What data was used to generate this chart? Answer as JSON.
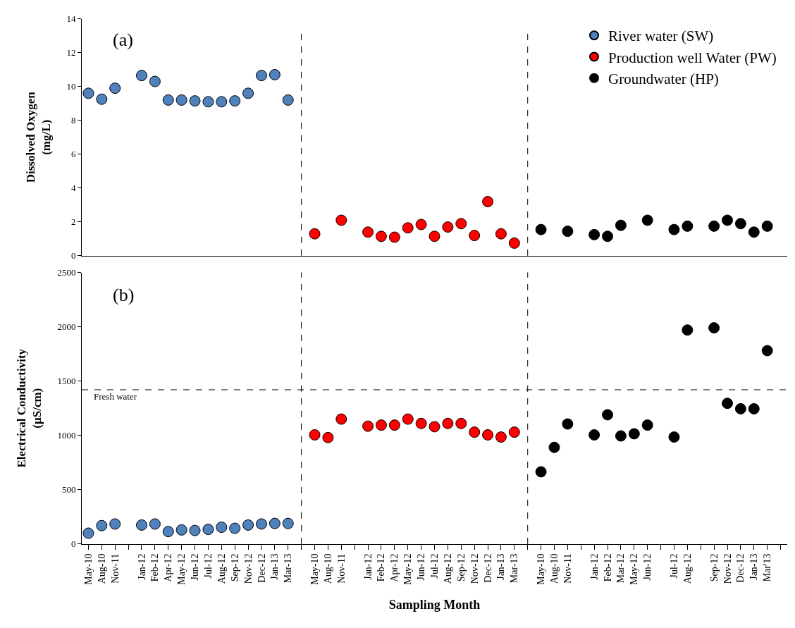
{
  "chart_data": [
    {
      "type": "scatter",
      "ylabel": "Dissolved Oxygen\n(mg/L)",
      "ylim": [
        0,
        14
      ],
      "yticks": [
        0,
        2,
        4,
        6,
        8,
        10,
        12,
        14
      ],
      "tick_labels": "y",
      "legend": "top right",
      "marker": "circle",
      "categories": [
        "May-10",
        "Aug-10",
        "Nov-11",
        null,
        "Jan-12",
        "Feb-12",
        "Apr-12",
        "May-12",
        "Jun-12",
        "Jul-12",
        "Aug-12",
        "Sep-12",
        "Nov-12",
        "Dec-12",
        "Jan-13",
        "Mar-13",
        null,
        "May-10",
        "Aug-10",
        "Nov-11",
        null,
        "Jan-12",
        "Feb-12",
        "Apr-12",
        "May-12",
        "Jun-12",
        "Jul-12",
        "Aug-12",
        "Sep-12",
        "Nov-12",
        "Dec-12",
        "Jan-13",
        "Mar-13",
        null,
        "May-10",
        "Aug-10",
        "Nov-11",
        null,
        "Jan-12",
        "Feb-12",
        "Mar-12",
        "May-12",
        "Jun-12",
        null,
        "Jul-12",
        "Aug-12",
        null,
        "Sep-12",
        "Nov-12",
        "Dec-12",
        "Jan-13",
        "Mar'13",
        null
      ],
      "annotations": [
        "(a)"
      ],
      "series": [
        {
          "name": "River water (SW)",
          "color": "#4f81bd",
          "values": [
            9.6,
            9.25,
            9.9,
            null,
            10.65,
            10.3,
            9.2,
            9.2,
            9.15,
            9.1,
            9.1,
            9.15,
            9.6,
            10.65,
            10.7,
            9.2,
            null,
            null,
            null,
            null,
            null,
            null,
            null,
            null,
            null,
            null,
            null,
            null,
            null,
            null,
            null,
            null,
            null,
            null,
            null,
            null,
            null,
            null,
            null,
            null,
            null,
            null,
            null,
            null,
            null,
            null,
            null,
            null,
            null,
            null,
            null,
            null,
            null
          ]
        },
        {
          "name": "Production well Water (PW)",
          "color": "#ff0000",
          "values": [
            null,
            null,
            null,
            null,
            null,
            null,
            null,
            null,
            null,
            null,
            null,
            null,
            null,
            null,
            null,
            null,
            null,
            1.3,
            null,
            2.1,
            null,
            1.4,
            1.15,
            1.1,
            1.65,
            1.85,
            1.15,
            1.7,
            1.9,
            1.2,
            3.2,
            1.3,
            0.75,
            null,
            null,
            null,
            null,
            null,
            null,
            null,
            null,
            null,
            null,
            null,
            null,
            null,
            null,
            null,
            null,
            null,
            null,
            null,
            null
          ]
        },
        {
          "name": "Groundwater (HP)",
          "color": "#000000",
          "values": [
            null,
            null,
            null,
            null,
            null,
            null,
            null,
            null,
            null,
            null,
            null,
            null,
            null,
            null,
            null,
            null,
            null,
            null,
            null,
            null,
            null,
            null,
            null,
            null,
            null,
            null,
            null,
            null,
            null,
            null,
            null,
            null,
            null,
            null,
            1.55,
            null,
            1.45,
            null,
            1.25,
            1.15,
            1.8,
            null,
            2.1,
            null,
            1.55,
            1.75,
            null,
            1.75,
            2.1,
            1.9,
            1.4,
            1.75,
            null
          ]
        }
      ]
    },
    {
      "type": "scatter",
      "xlabel": "Sampling Month",
      "ylabel": "Electrical Conductivity\n(µS/cm)",
      "ylim": [
        0,
        2500
      ],
      "yticks": [
        0,
        500,
        1000,
        1500,
        2000,
        2500
      ],
      "marker": "circle",
      "categories": [
        "May-10",
        "Aug-10",
        "Nov-11",
        null,
        "Jan-12",
        "Feb-12",
        "Apr-12",
        "May-12",
        "Jun-12",
        "Jul-12",
        "Aug-12",
        "Sep-12",
        "Nov-12",
        "Dec-12",
        "Jan-13",
        "Mar-13",
        null,
        "May-10",
        "Aug-10",
        "Nov-11",
        null,
        "Jan-12",
        "Feb-12",
        "Apr-12",
        "May-12",
        "Jun-12",
        "Jul-12",
        "Aug-12",
        "Sep-12",
        "Nov-12",
        "Dec-12",
        "Jan-13",
        "Mar-13",
        null,
        "May-10",
        "Aug-10",
        "Nov-11",
        null,
        "Jan-12",
        "Feb-12",
        "Mar-12",
        "May-12",
        "Jun-12",
        null,
        "Jul-12",
        "Aug-12",
        null,
        "Sep-12",
        "Nov-12",
        "Dec-12",
        "Jan-13",
        "Mar'13",
        null
      ],
      "annotations": [
        "(b)"
      ],
      "ref_lines": [
        {
          "axis": "y",
          "value": 1420,
          "label": "Fresh water",
          "line_style": "dashed"
        }
      ],
      "series": [
        {
          "color": "#4f81bd",
          "values": [
            100,
            170,
            185,
            null,
            175,
            185,
            115,
            130,
            125,
            135,
            155,
            145,
            175,
            185,
            190,
            190,
            null,
            null,
            null,
            null,
            null,
            null,
            null,
            null,
            null,
            null,
            null,
            null,
            null,
            null,
            null,
            null,
            null,
            null,
            null,
            null,
            null,
            null,
            null,
            null,
            null,
            null,
            null,
            null,
            null,
            null,
            null,
            null,
            null,
            null,
            null,
            null,
            null
          ]
        },
        {
          "color": "#ff0000",
          "values": [
            null,
            null,
            null,
            null,
            null,
            null,
            null,
            null,
            null,
            null,
            null,
            null,
            null,
            null,
            null,
            null,
            null,
            1005,
            980,
            1150,
            null,
            1085,
            1095,
            1095,
            1150,
            1110,
            1080,
            1110,
            1110,
            1030,
            1005,
            985,
            1030,
            null,
            null,
            null,
            null,
            null,
            null,
            null,
            null,
            null,
            null,
            null,
            null,
            null,
            null,
            null,
            null,
            null,
            null,
            null,
            null
          ]
        },
        {
          "color": "#000000",
          "values": [
            null,
            null,
            null,
            null,
            null,
            null,
            null,
            null,
            null,
            null,
            null,
            null,
            null,
            null,
            null,
            null,
            null,
            null,
            null,
            null,
            null,
            null,
            null,
            null,
            null,
            null,
            null,
            null,
            null,
            null,
            null,
            null,
            null,
            null,
            665,
            890,
            1105,
            null,
            1005,
            1190,
            995,
            1015,
            1095,
            null,
            985,
            1970,
            null,
            1990,
            1295,
            1245,
            1245,
            1780,
            null
          ]
        }
      ]
    }
  ]
}
